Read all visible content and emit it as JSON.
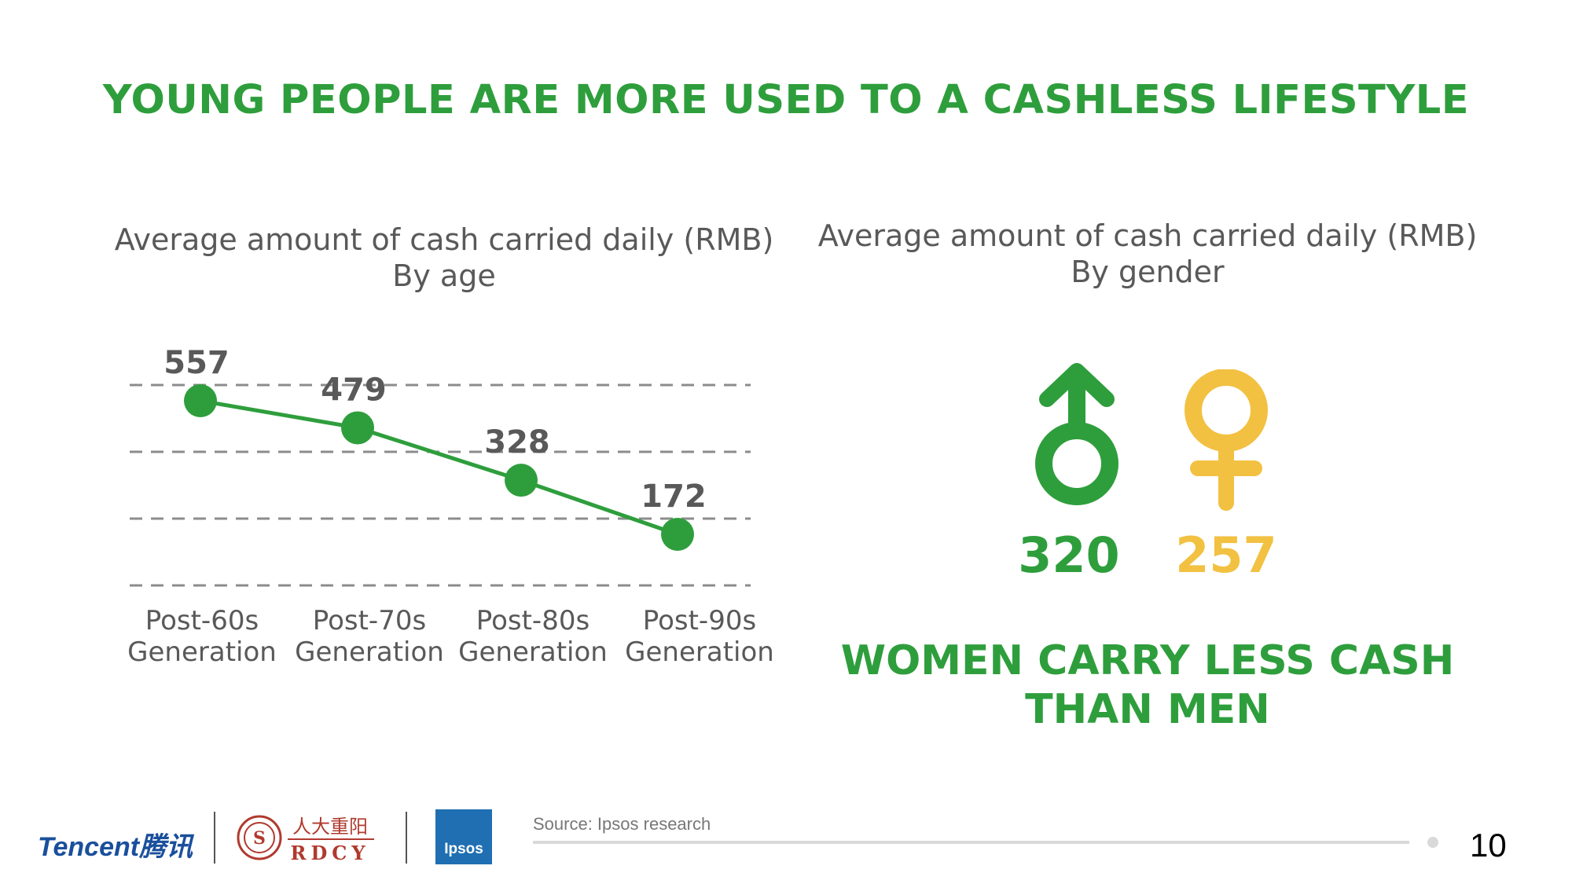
{
  "title": "YOUNG PEOPLE ARE MORE USED TO A CASHLESS LIFESTYLE",
  "age_panel": {
    "title_line1": "Average amount of cash carried daily (RMB)",
    "title_line2": "By age"
  },
  "gender_panel": {
    "title_line1": "Average amount of cash carried daily (RMB)",
    "title_line2": "By gender",
    "male_value": "320",
    "female_value": "257",
    "male_icon": "male-symbol-icon",
    "female_icon": "female-symbol-icon",
    "conclusion_line1": "WOMEN CARRY LESS CASH",
    "conclusion_line2": "THAN MEN"
  },
  "chart_data": [
    {
      "type": "line",
      "title": "Average amount of cash carried daily (RMB)",
      "subtitle": "By age",
      "categories": [
        [
          "Post-60s",
          "Generation"
        ],
        [
          "Post-70s",
          "Generation"
        ],
        [
          "Post-80s",
          "Generation"
        ],
        [
          "Post-90s",
          "Generation"
        ]
      ],
      "values": [
        557,
        479,
        328,
        172
      ],
      "ylim": [
        100,
        600
      ],
      "grid": true,
      "color": "#2e9e3c"
    },
    {
      "type": "bar",
      "title": "Average amount of cash carried daily (RMB)",
      "subtitle": "By gender",
      "categories": [
        "Male",
        "Female"
      ],
      "values": [
        320,
        257
      ],
      "colors": [
        "#2e9e3c",
        "#f2c142"
      ]
    }
  ],
  "footer": {
    "tencent": "Tencent腾讯",
    "rdcy_cn": "人大重阳",
    "rdcy_en": "RDCY",
    "ipsos": "Ipsos",
    "source": "Source: Ipsos research",
    "page_number": "10"
  },
  "colors": {
    "accent_green": "#2e9e3c",
    "accent_yellow": "#f2c142",
    "text_gray": "#595959"
  }
}
